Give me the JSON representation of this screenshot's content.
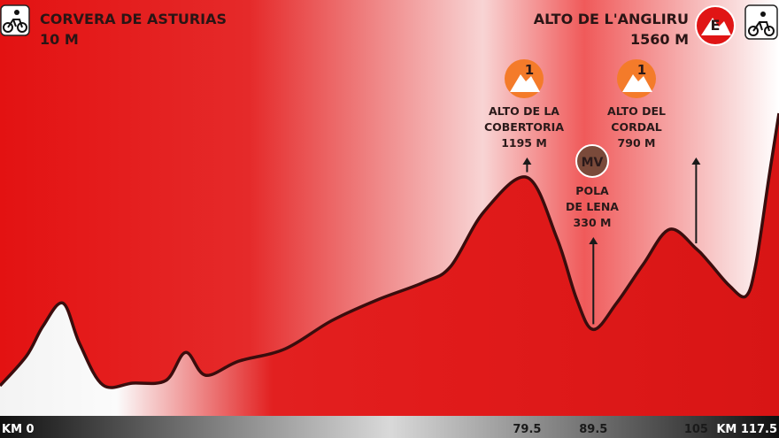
{
  "start": {
    "name": "CORVERA DE ASTURIAS",
    "altitude": "10 M"
  },
  "finish": {
    "name": "ALTO DE L'ANGLIRU",
    "altitude": "1560 M",
    "badge": "E"
  },
  "climbs": [
    {
      "id": "cobertoria",
      "badge": "1",
      "lines": [
        "ALTO DE LA",
        "COBERTORIA",
        "1195 M"
      ],
      "km": 79.5
    },
    {
      "id": "cordal",
      "badge": "1",
      "lines": [
        "ALTO DEL",
        "CORDAL",
        "790 M"
      ],
      "km": 105
    }
  ],
  "sprint": {
    "badge": "MV",
    "lines": [
      "POLA",
      "DE LENA",
      "330 M"
    ],
    "km": 89.5
  },
  "icons": {
    "bike_left": "bike-icon",
    "bike_right": "bike-icon",
    "climb": "mountain-climb-icon",
    "finish": "summit-finish-icon"
  },
  "colors": {
    "fill_red": "#e11b1b",
    "line_dark": "#3a0d0d",
    "badge_orange": "#f47b2a",
    "badge_brown": "#7a4a3a",
    "axis_bar": "#111111"
  },
  "chart_data": {
    "type": "area",
    "xlabel": "",
    "ylabel": "",
    "x_unit": "KM",
    "y_unit": "M",
    "xlim": [
      0,
      117.5
    ],
    "ylim": [
      0,
      1560
    ],
    "grid": false,
    "tick_labels": [
      "KM 0",
      "79.5",
      "89.5",
      "105",
      "KM 117.5"
    ],
    "tick_values": [
      0,
      79.5,
      89.5,
      105,
      117.5
    ],
    "series": [
      {
        "points": [
          [
            0,
            10
          ],
          [
            4,
            180
          ],
          [
            6.5,
            350
          ],
          [
            9.5,
            480
          ],
          [
            12,
            250
          ],
          [
            15.5,
            15
          ],
          [
            20,
            25
          ],
          [
            25,
            40
          ],
          [
            28,
            200
          ],
          [
            31,
            70
          ],
          [
            36,
            150
          ],
          [
            43,
            220
          ],
          [
            50,
            380
          ],
          [
            57,
            500
          ],
          [
            64,
            600
          ],
          [
            68,
            690
          ],
          [
            73,
            1000
          ],
          [
            79.5,
            1195
          ],
          [
            84,
            850
          ],
          [
            87,
            500
          ],
          [
            89.5,
            330
          ],
          [
            93,
            480
          ],
          [
            97,
            700
          ],
          [
            101,
            900
          ],
          [
            105,
            790
          ],
          [
            107,
            710
          ],
          [
            110,
            580
          ],
          [
            112.5,
            520
          ],
          [
            114,
            700
          ],
          [
            116,
            1200
          ],
          [
            117.5,
            1560
          ]
        ]
      }
    ]
  }
}
